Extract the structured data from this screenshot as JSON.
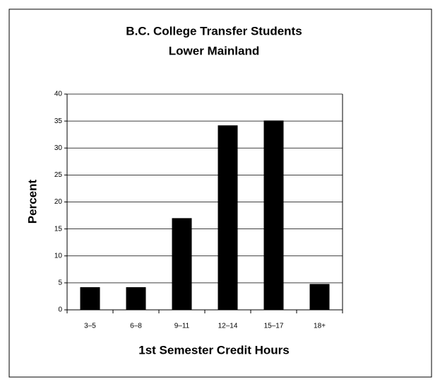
{
  "chart_data": {
    "type": "bar",
    "title": [
      "B.C. College Transfer Students",
      "Lower Mainland"
    ],
    "xlabel": "1st Semester Credit Hours",
    "ylabel": "Percent",
    "categories": [
      "3–5",
      "6–8",
      "9–11",
      "12–14",
      "15–17",
      "18+"
    ],
    "values": [
      4.2,
      4.2,
      17.0,
      34.2,
      35.1,
      4.8
    ],
    "color": "#000000",
    "ylim": [
      0,
      40
    ],
    "yticks": [
      0,
      5,
      10,
      15,
      20,
      25,
      30,
      35,
      40
    ],
    "grid": true
  }
}
